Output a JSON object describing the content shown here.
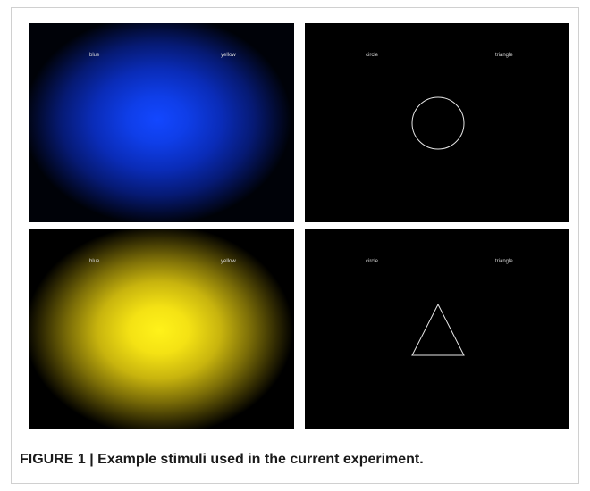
{
  "figure": {
    "panels": [
      {
        "left_label": "blue",
        "right_label": "yellow",
        "stimulus": "blue-color-field"
      },
      {
        "left_label": "circle",
        "right_label": "triangle",
        "stimulus": "circle-outline"
      },
      {
        "left_label": "blue",
        "right_label": "yellow",
        "stimulus": "yellow-color-field"
      },
      {
        "left_label": "circle",
        "right_label": "triangle",
        "stimulus": "triangle-outline"
      }
    ],
    "colors": {
      "blue": "#1347ff",
      "yellow": "#fff21a",
      "outline": "#e6e6e6",
      "panel_background": "#000000"
    },
    "caption": "FIGURE 1 | Example stimuli used in the current experiment."
  }
}
